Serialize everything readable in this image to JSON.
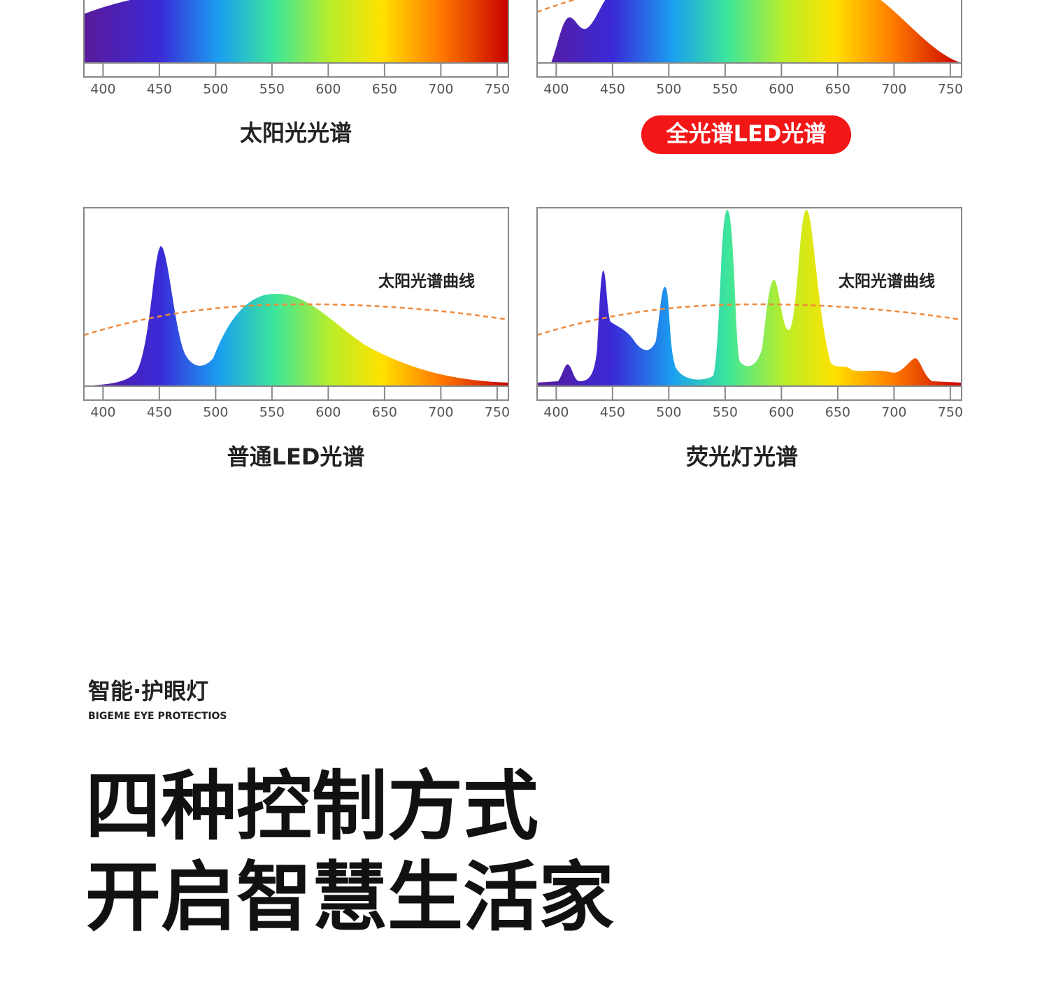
{
  "panels": [
    {
      "title": "太阳光光谱",
      "xlim": [
        383,
        760
      ],
      "xticks": [
        400,
        450,
        500,
        550,
        600,
        650,
        700,
        750
      ]
    },
    {
      "title": "全光谱LED光谱",
      "xlim": [
        383,
        760
      ],
      "xticks": [
        400,
        450,
        500,
        550,
        600,
        650,
        700,
        750
      ]
    },
    {
      "title": "普通LED光谱",
      "curve_label": "太阳光谱曲线",
      "xlim": [
        383,
        760
      ],
      "xticks": [
        400,
        450,
        500,
        550,
        600,
        650,
        700,
        750
      ]
    },
    {
      "title": "荧光灯光谱",
      "curve_label": "太阳光谱曲线",
      "xlim": [
        383,
        760
      ],
      "xticks": [
        400,
        450,
        500,
        550,
        600,
        650,
        700,
        750
      ]
    }
  ],
  "section": {
    "tag": "智能·护眼灯",
    "tag_en": "BIGEME EYE PROTECTIOS",
    "headline": [
      "四种控制方式",
      "开启智慧生活家"
    ]
  }
}
